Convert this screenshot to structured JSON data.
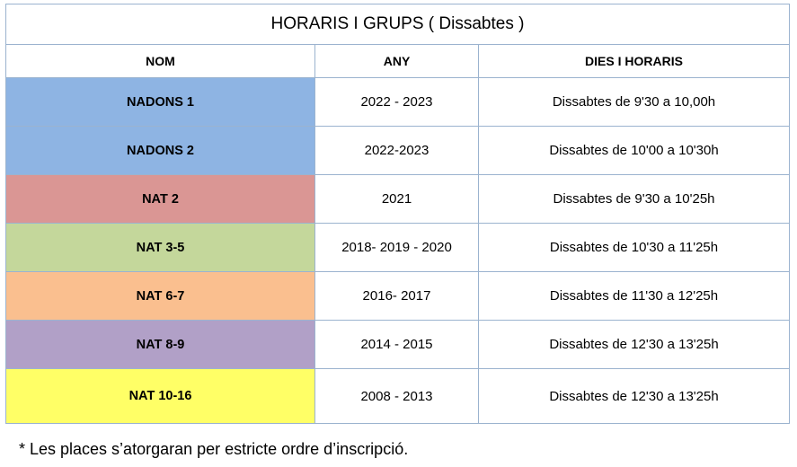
{
  "table": {
    "title": "HORARIS I GRUPS  ( Dissabtes )",
    "headers": [
      "NOM",
      "ANY",
      "DIES I HORARIS"
    ],
    "rows": [
      {
        "name": "NADONS 1",
        "year": "2022 - 2023",
        "schedule": "Dissabtes de 9'30 a 10,00h",
        "color": "#8eb4e3"
      },
      {
        "name": "NADONS 2",
        "year": "2022-2023",
        "schedule": "Dissabtes de 10'00 a 10'30h",
        "color": "#8eb4e3"
      },
      {
        "name": "NAT 2",
        "year": "2021",
        "schedule": "Dissabtes de 9'30 a 10'25h",
        "color": "#da9694"
      },
      {
        "name": "NAT 3-5",
        "year": "2018- 2019 - 2020",
        "schedule": "Dissabtes de 10'30 a 11'25h",
        "color": "#c4d79b"
      },
      {
        "name": "NAT 6-7",
        "year": "2016- 2017",
        "schedule": "Dissabtes de 11'30 a 12'25h",
        "color": "#fabf8f"
      },
      {
        "name": "NAT 8-9",
        "year": "2014 - 2015",
        "schedule": "Dissabtes de 12'30 a 13'25h",
        "color": "#b1a0c7"
      },
      {
        "name": "NAT 10-16",
        "year": "2008 - 2013",
        "schedule": "Dissabtes de 12'30 a 13'25h",
        "color": "#ffff66"
      }
    ]
  },
  "footnote": "* Les places s’atorgaran per estricte ordre d’inscripció."
}
